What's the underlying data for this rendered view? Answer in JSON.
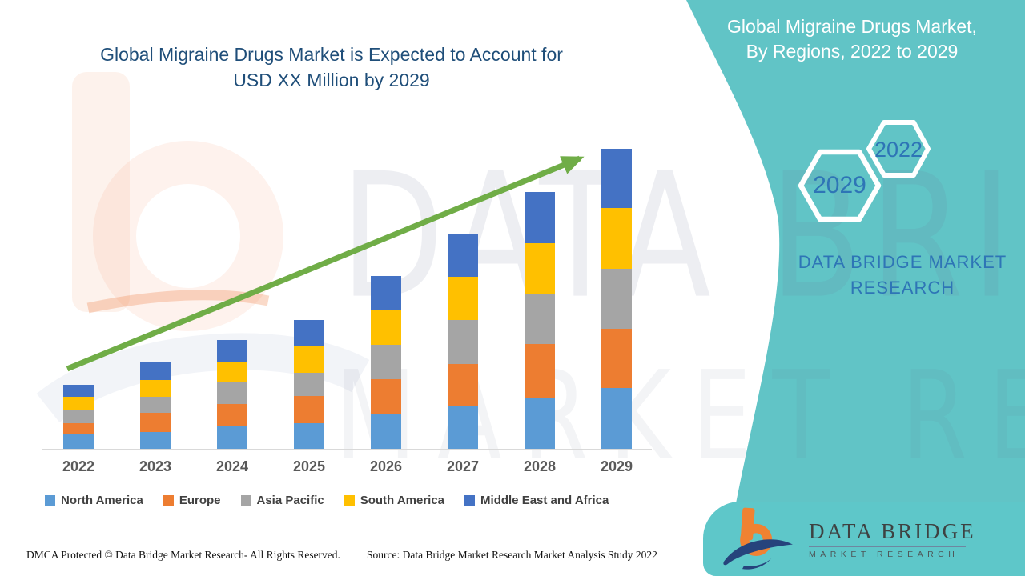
{
  "header": {
    "title_line1": "Global Migraine Drugs Market is Expected to Account for",
    "title_line2": "USD XX Million by 2029",
    "title_color": "#1F4E79"
  },
  "side_panel": {
    "bg": "#61C4C6",
    "heading_line1": "Global Migraine Drugs Market,",
    "heading_line2": "By Regions, 2022 to 2029",
    "hexagons": [
      {
        "label": "2029"
      },
      {
        "label": "2022"
      }
    ],
    "hex_text_color": "#2E75B6",
    "brand_line1": "DATA BRIDGE MARKET",
    "brand_line2": "RESEARCH"
  },
  "chart_data": {
    "type": "bar",
    "stacked": true,
    "title": "Global Migraine Drugs Market is Expected to Account for USD XX Million by 2029",
    "subtitle": "Global Migraine Drugs Market, By Regions, 2022 to 2029",
    "xlabel": "",
    "ylabel": "",
    "units": "USD Million (axis unlabeled; values are relative estimates read from bar heights)",
    "categories": [
      "2022",
      "2023",
      "2024",
      "2025",
      "2026",
      "2027",
      "2028",
      "2029"
    ],
    "series": [
      {
        "name": "North America",
        "color": "#5B9BD5",
        "values": [
          18,
          21,
          28,
          32,
          43,
          53,
          64,
          76
        ]
      },
      {
        "name": "Europe",
        "color": "#ED7D31",
        "values": [
          14,
          24,
          28,
          34,
          44,
          53,
          67,
          74
        ]
      },
      {
        "name": "Asia Pacific",
        "color": "#A5A5A5",
        "values": [
          16,
          20,
          27,
          29,
          43,
          55,
          62,
          75
        ]
      },
      {
        "name": "South America",
        "color": "#FFC000",
        "values": [
          17,
          21,
          26,
          34,
          43,
          54,
          64,
          76
        ]
      },
      {
        "name": "Middle East and Africa",
        "color": "#4472C4",
        "values": [
          15,
          22,
          27,
          32,
          43,
          53,
          64,
          74
        ]
      }
    ],
    "totals": [
      80,
      108,
      136,
      161,
      216,
      268,
      321,
      375
    ],
    "ylim": [
      0,
      400
    ],
    "grid": false,
    "legend_position": "bottom",
    "trend_arrow": true,
    "trend_arrow_color": "#70AD47",
    "axis_line_color": "#D9D9D9",
    "tick_label_color": "#595959"
  },
  "watermark": {
    "line1": "DATA BRIDGE",
    "line2": "MARKET RESEARCH"
  },
  "logo_card": {
    "brand_top": "DATA BRIDGE",
    "brand_bottom": "MARKET RESEARCH"
  },
  "footer": {
    "dmca": "DMCA Protected © Data Bridge Market Research- All Rights Reserved.",
    "source": "Source: Data Bridge Market Research Market Analysis Study 2022"
  }
}
